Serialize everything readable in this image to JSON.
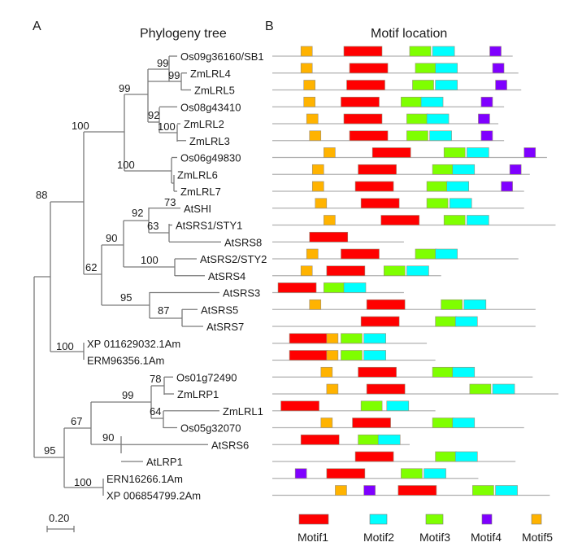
{
  "chart_data": {
    "type": "diagram",
    "panels": [
      {
        "id": "A",
        "title": "Phylogeny tree",
        "letter": "A"
      },
      {
        "id": "B",
        "title": "Motif location",
        "letter": "B"
      }
    ],
    "tree": {
      "scale_bar_label": "0.20",
      "bootstrap_values": [
        "99",
        "99",
        "99",
        "92",
        "100",
        "100",
        "100",
        "88",
        "73",
        "92",
        "63",
        "90",
        "100",
        "62",
        "95",
        "87",
        "100",
        "78",
        "99",
        "64",
        "67",
        "90",
        "95",
        "100"
      ],
      "leaves": [
        "Os09g36160/SB1",
        "ZmLRL4",
        "ZmLRL5",
        "Os08g43410",
        "ZmLRL2",
        "ZmLRL3",
        "Os06g49830",
        "ZmLRL6",
        "ZmLRL7",
        "AtSHI",
        "AtSRS1/STY1",
        "AtSRS8",
        "AtSRS2/STY2",
        "AtSRS4",
        "AtSRS3",
        "AtSRS5",
        "AtSRS7",
        "XP 011629032.1Am",
        "ERM96356.1Am",
        "Os01g72490",
        "ZmLRP1",
        "ZmLRL1",
        "Os05g32070",
        "AtSRS6",
        "AtLRP1",
        "ERN16266.1Am",
        "XP 006854799.2Am"
      ]
    },
    "motif_legend": [
      {
        "name": "Motif1",
        "color": "#FF0000"
      },
      {
        "name": "Motif2",
        "color": "#00FFFF"
      },
      {
        "name": "Motif3",
        "color": "#7FFF00"
      },
      {
        "name": "Motif4",
        "color": "#7F00FF"
      },
      {
        "name": "Motif5",
        "color": "#FFB300"
      }
    ],
    "motif_rows": [
      {
        "gene": "Os09g36160/SB1",
        "length": 0.84,
        "motifs": [
          [
            "Motif5",
            0.1
          ],
          [
            "Motif1",
            0.25
          ],
          [
            "Motif3",
            0.48
          ],
          [
            "Motif2",
            0.56
          ],
          [
            "Motif4",
            0.76
          ]
        ]
      },
      {
        "gene": "ZmLRL4",
        "length": 0.86,
        "motifs": [
          [
            "Motif5",
            0.1
          ],
          [
            "Motif1",
            0.27
          ],
          [
            "Motif3",
            0.5
          ],
          [
            "Motif2",
            0.57
          ],
          [
            "Motif4",
            0.77
          ]
        ]
      },
      {
        "gene": "ZmLRL5",
        "length": 0.87,
        "motifs": [
          [
            "Motif5",
            0.11
          ],
          [
            "Motif1",
            0.26
          ],
          [
            "Motif3",
            0.49
          ],
          [
            "Motif2",
            0.57
          ],
          [
            "Motif4",
            0.78
          ]
        ]
      },
      {
        "gene": "Os08g43410",
        "length": 0.81,
        "motifs": [
          [
            "Motif5",
            0.11
          ],
          [
            "Motif1",
            0.24
          ],
          [
            "Motif3",
            0.45
          ],
          [
            "Motif2",
            0.52
          ],
          [
            "Motif4",
            0.73
          ]
        ]
      },
      {
        "gene": "ZmLRL2",
        "length": 0.79,
        "motifs": [
          [
            "Motif5",
            0.12
          ],
          [
            "Motif1",
            0.25
          ],
          [
            "Motif3",
            0.47
          ],
          [
            "Motif2",
            0.54
          ],
          [
            "Motif4",
            0.72
          ]
        ]
      },
      {
        "gene": "ZmLRL3",
        "length": 0.81,
        "motifs": [
          [
            "Motif5",
            0.13
          ],
          [
            "Motif1",
            0.27
          ],
          [
            "Motif3",
            0.47
          ],
          [
            "Motif2",
            0.55
          ],
          [
            "Motif4",
            0.73
          ]
        ]
      },
      {
        "gene": "Os06g49830",
        "length": 0.96,
        "motifs": [
          [
            "Motif5",
            0.18
          ],
          [
            "Motif1",
            0.35
          ],
          [
            "Motif3",
            0.6
          ],
          [
            "Motif2",
            0.68
          ],
          [
            "Motif4",
            0.88
          ]
        ]
      },
      {
        "gene": "ZmLRL6",
        "length": 0.9,
        "motifs": [
          [
            "Motif5",
            0.14
          ],
          [
            "Motif1",
            0.3
          ],
          [
            "Motif3",
            0.56
          ],
          [
            "Motif2",
            0.63
          ],
          [
            "Motif4",
            0.83
          ]
        ]
      },
      {
        "gene": "ZmLRL7",
        "length": 0.88,
        "motifs": [
          [
            "Motif5",
            0.14
          ],
          [
            "Motif1",
            0.29
          ],
          [
            "Motif3",
            0.54
          ],
          [
            "Motif2",
            0.61
          ],
          [
            "Motif4",
            0.8
          ]
        ]
      },
      {
        "gene": "AtSHI",
        "length": 0.88,
        "motifs": [
          [
            "Motif5",
            0.15
          ],
          [
            "Motif1",
            0.31
          ],
          [
            "Motif3",
            0.54
          ],
          [
            "Motif2",
            0.62
          ]
        ]
      },
      {
        "gene": "AtSRS1/STY1",
        "length": 0.99,
        "motifs": [
          [
            "Motif5",
            0.18
          ],
          [
            "Motif1",
            0.38
          ],
          [
            "Motif3",
            0.6
          ],
          [
            "Motif2",
            0.68
          ]
        ]
      },
      {
        "gene": "AtSRS8",
        "length": 0.46,
        "motifs": [
          [
            "Motif1",
            0.13
          ]
        ]
      },
      {
        "gene": "AtSRS2/STY2",
        "length": 0.86,
        "motifs": [
          [
            "Motif5",
            0.12
          ],
          [
            "Motif1",
            0.24
          ],
          [
            "Motif3",
            0.5
          ],
          [
            "Motif2",
            0.57
          ]
        ]
      },
      {
        "gene": "AtSRS4",
        "length": 0.59,
        "motifs": [
          [
            "Motif5",
            0.1
          ],
          [
            "Motif1",
            0.19
          ],
          [
            "Motif3",
            0.39
          ],
          [
            "Motif2",
            0.47
          ]
        ]
      },
      {
        "gene": "AtSRS3",
        "length": 0.46,
        "motifs": [
          [
            "Motif1",
            0.02
          ],
          [
            "Motif3",
            0.18
          ],
          [
            "Motif2",
            0.25
          ]
        ]
      },
      {
        "gene": "AtSRS5",
        "length": 0.92,
        "motifs": [
          [
            "Motif5",
            0.13
          ],
          [
            "Motif1",
            0.33
          ],
          [
            "Motif3",
            0.59
          ],
          [
            "Motif2",
            0.67
          ]
        ]
      },
      {
        "gene": "AtSRS7",
        "length": 0.92,
        "motifs": [
          [
            "Motif1",
            0.31
          ],
          [
            "Motif3",
            0.57
          ],
          [
            "Motif2",
            0.64
          ]
        ]
      },
      {
        "gene": "XP 011629032.1Am",
        "length": 0.54,
        "motifs": [
          [
            "Motif1",
            0.06
          ],
          [
            "Motif5",
            0.19
          ],
          [
            "Motif3",
            0.24
          ],
          [
            "Motif2",
            0.32
          ]
        ]
      },
      {
        "gene": "ERM96356.1Am",
        "length": 0.57,
        "motifs": [
          [
            "Motif1",
            0.06
          ],
          [
            "Motif5",
            0.19
          ],
          [
            "Motif3",
            0.24
          ],
          [
            "Motif2",
            0.32
          ]
        ]
      },
      {
        "gene": "Os01g72490",
        "length": 0.91,
        "motifs": [
          [
            "Motif5",
            0.17
          ],
          [
            "Motif1",
            0.3
          ],
          [
            "Motif3",
            0.56
          ],
          [
            "Motif2",
            0.63
          ]
        ]
      },
      {
        "gene": "ZmLRP1",
        "length": 1.0,
        "motifs": [
          [
            "Motif5",
            0.19
          ],
          [
            "Motif1",
            0.33
          ],
          [
            "Motif3",
            0.69
          ],
          [
            "Motif2",
            0.77
          ]
        ]
      },
      {
        "gene": "ZmLRL1",
        "length": 0.57,
        "motifs": [
          [
            "Motif1",
            0.03
          ],
          [
            "Motif3",
            0.31
          ],
          [
            "Motif2",
            0.4
          ]
        ]
      },
      {
        "gene": "Os05g32070",
        "length": 0.88,
        "motifs": [
          [
            "Motif5",
            0.17
          ],
          [
            "Motif1",
            0.28
          ],
          [
            "Motif3",
            0.56
          ],
          [
            "Motif2",
            0.63
          ]
        ]
      },
      {
        "gene": "AtSRS6",
        "length": 0.48,
        "motifs": [
          [
            "Motif1",
            0.1
          ],
          [
            "Motif3",
            0.3
          ],
          [
            "Motif2",
            0.37
          ]
        ]
      },
      {
        "gene": "AtLRP1",
        "length": 0.85,
        "motifs": [
          [
            "Motif1",
            0.29
          ],
          [
            "Motif3",
            0.57
          ],
          [
            "Motif2",
            0.64
          ]
        ]
      },
      {
        "gene": "ERN16266.1Am",
        "length": 0.72,
        "motifs": [
          [
            "Motif4",
            0.08
          ],
          [
            "Motif1",
            0.19
          ],
          [
            "Motif3",
            0.45
          ],
          [
            "Motif2",
            0.53
          ]
        ]
      },
      {
        "gene": "XP 006854799.2Am",
        "length": 0.97,
        "motifs": [
          [
            "Motif5",
            0.22
          ],
          [
            "Motif4",
            0.32
          ],
          [
            "Motif1",
            0.44
          ],
          [
            "Motif3",
            0.7
          ],
          [
            "Motif2",
            0.78
          ]
        ]
      }
    ]
  }
}
